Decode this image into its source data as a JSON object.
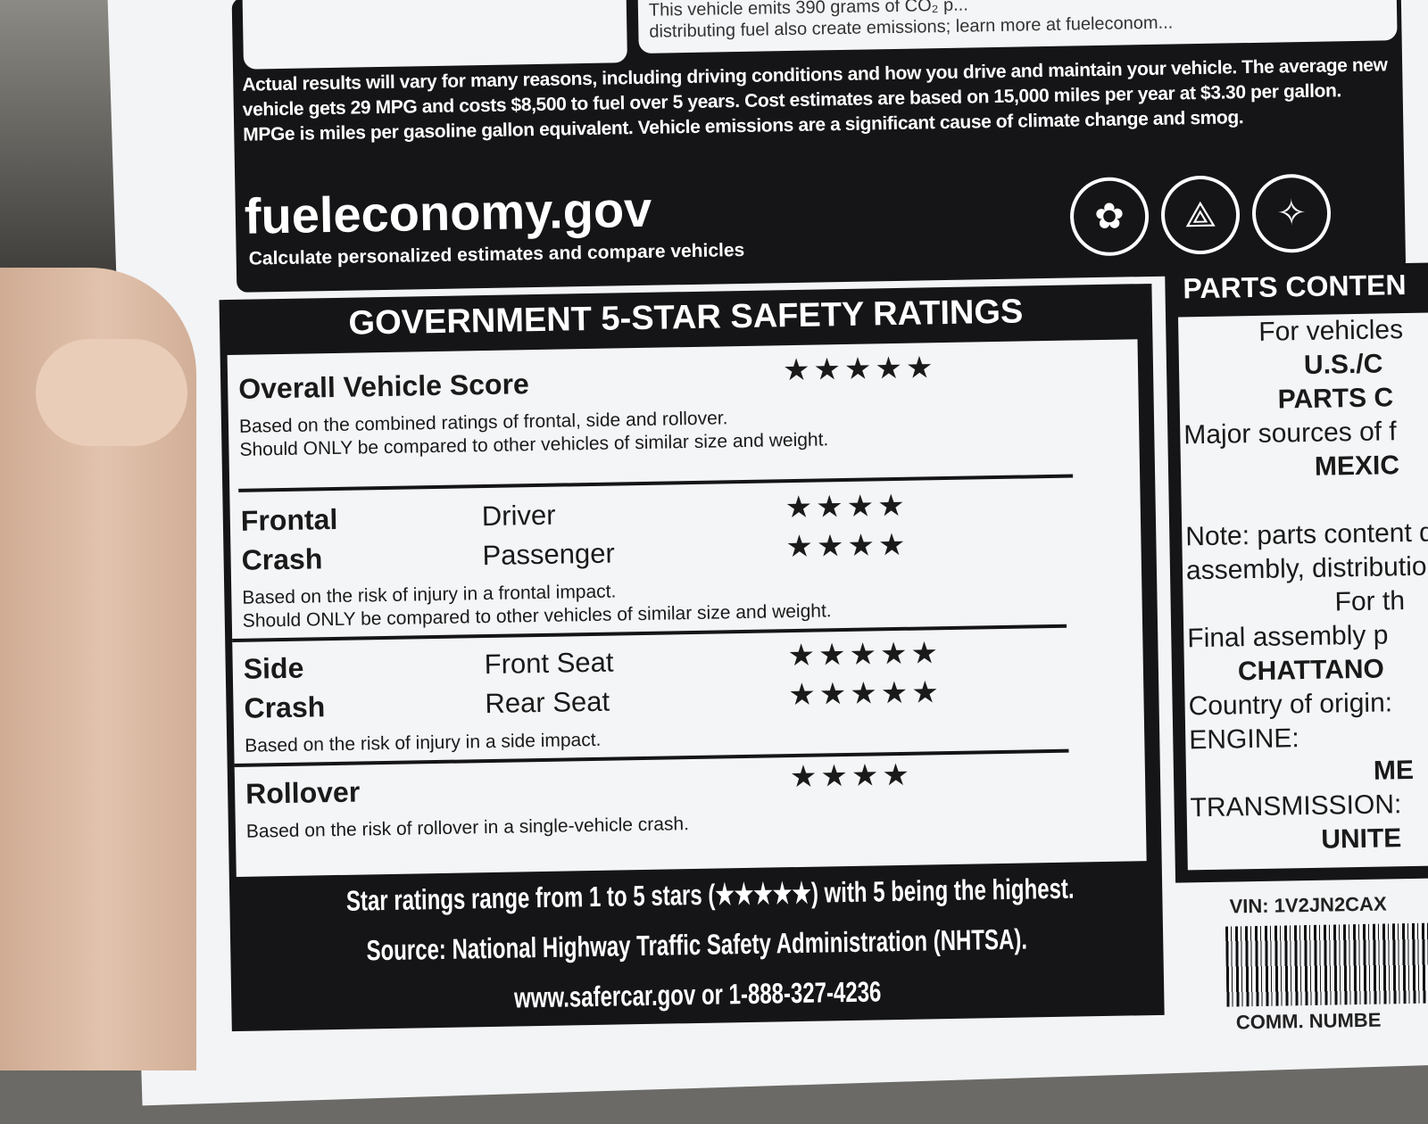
{
  "fuel_economy": {
    "emissions_text_1": "This vehicle emits 390 grams of CO₂ p...",
    "emissions_text_2": "distributing fuel also create emissions; learn more at fueleconom...",
    "disclaimer": "Actual results will vary for many reasons, including driving conditions and how you drive and maintain your vehicle. The average new vehicle gets 29 MPG and costs $8,500 to fuel over 5 years. Cost estimates are based on 15,000 miles per year at $3.30 per gallon. MPGe is miles per gasoline gallon equivalent. Vehicle emissions are a significant cause of climate change and smog.",
    "site": "fueleconomy.gov",
    "site_sub": "Calculate personalized estimates and compare vehicles",
    "seals": [
      "epa-seal-icon",
      "dot-seal-icon",
      "doe-seal-icon"
    ]
  },
  "safety": {
    "title": "GOVERNMENT 5-STAR SAFETY RATINGS",
    "overall": {
      "label": "Overall Vehicle Score",
      "stars": 5,
      "note1": "Based on the combined ratings of frontal, side and rollover.",
      "note2": "Should ONLY be compared to other vehicles of similar size and weight."
    },
    "frontal": {
      "label1": "Frontal",
      "label2": "Crash",
      "driver_label": "Driver",
      "driver_stars": 4,
      "passenger_label": "Passenger",
      "passenger_stars": 4,
      "note1": "Based on the risk of injury in a frontal impact.",
      "note2": "Should ONLY be compared to other vehicles of similar size and weight."
    },
    "side": {
      "label1": "Side",
      "label2": "Crash",
      "front_label": "Front Seat",
      "front_stars": 5,
      "rear_label": "Rear Seat",
      "rear_stars": 5,
      "note1": "Based on the risk of injury in a side impact."
    },
    "rollover": {
      "label": "Rollover",
      "stars": 4,
      "note1": "Based on the risk of rollover in a single-vehicle crash."
    },
    "footer1": "Star ratings range from 1 to 5 stars (★★★★★) with 5 being the highest.",
    "footer2": "Source: National Highway Traffic Safety Administration (NHTSA).",
    "footer3": "www.safercar.gov or 1-888-327-4236"
  },
  "parts": {
    "title": "PARTS CONTEN",
    "lines": [
      "For vehicles",
      "U.S./C",
      "PARTS C",
      "Major sources of f",
      "MEXIC",
      "",
      "Note: parts content d",
      "assembly, distributio",
      "For th",
      "Final assembly p",
      "CHATTANO",
      "Country of origin:",
      "ENGINE:",
      "ME",
      "TRANSMISSION:",
      "UNITE"
    ],
    "vin": "VIN: 1V2JN2CAX",
    "comm": "COMM. NUMBE"
  }
}
